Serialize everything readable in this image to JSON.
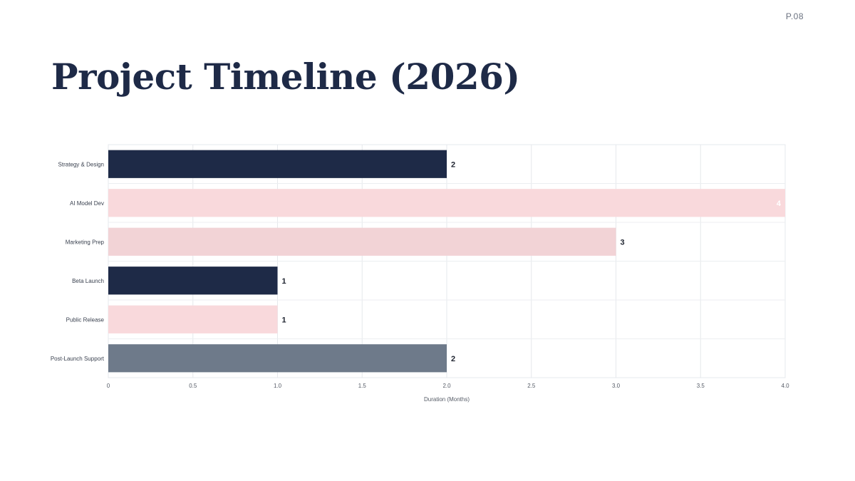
{
  "page_number": "P.08",
  "title": "Project Timeline (2026)",
  "colors": {
    "navy": "#1e2a47",
    "pink_light": "#f9d9dc",
    "pink": "#f2d3d6",
    "slate": "#6e7a8a"
  },
  "chart_data": {
    "type": "bar",
    "orientation": "horizontal",
    "categories": [
      "Strategy & Design",
      "AI Model Dev",
      "Marketing Prep",
      "Beta Launch",
      "Public Release",
      "Post-Launch Support"
    ],
    "values": [
      2,
      4,
      3,
      1,
      1,
      2
    ],
    "data_labels": [
      "2",
      "4",
      "3",
      "1",
      "1",
      "2"
    ],
    "bar_colors": [
      "#1e2a47",
      "#f9d9dc",
      "#f2d3d6",
      "#1e2a47",
      "#f9d9dc",
      "#6e7a8a"
    ],
    "xlabel": "Duration (Months)",
    "ylabel": "",
    "xlim": [
      0,
      4
    ],
    "x_ticks": [
      0,
      0.5,
      1,
      1.5,
      2,
      2.5,
      3,
      3.5,
      4
    ],
    "x_tick_labels": [
      "0",
      "0.5",
      "1.0",
      "1.5",
      "2.0",
      "2.5",
      "3.0",
      "3.5",
      "4.0"
    ],
    "grid": true,
    "legend": "none"
  }
}
